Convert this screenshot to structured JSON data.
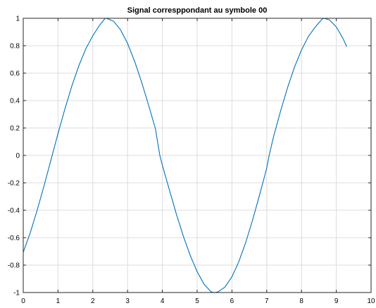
{
  "chart_data": {
    "type": "line",
    "title": "Signal corresppondant au symbole 00",
    "xlabel": "",
    "ylabel": "",
    "xlim": [
      0,
      10
    ],
    "ylim": [
      -1,
      1
    ],
    "xticks": [
      0,
      1,
      2,
      3,
      4,
      5,
      6,
      7,
      8,
      9,
      10
    ],
    "yticks": [
      1,
      0.8,
      0.6,
      0.4,
      0.2,
      0,
      -0.2,
      -0.4,
      -0.6,
      -0.8,
      -1
    ],
    "xtick_labels": [
      "0",
      "1",
      "2",
      "3",
      "4",
      "5",
      "6",
      "7",
      "8",
      "9",
      "10"
    ],
    "ytick_labels": [
      "1",
      "0.8",
      "0.6",
      "0.4",
      "0.2",
      "0",
      "-0.2",
      "-0.4",
      "-0.6",
      "-0.8",
      "-1"
    ],
    "grid": true,
    "line_color": "#0072BD",
    "series": [
      {
        "x": [
          0,
          0.2,
          0.4,
          0.6,
          0.8,
          1.0,
          1.2,
          1.4,
          1.6,
          1.8,
          2.0,
          2.2,
          2.356,
          2.4,
          2.6,
          2.8,
          3.0,
          3.2,
          3.4,
          3.6,
          3.8,
          3.927,
          4.0,
          4.2,
          4.4,
          4.6,
          4.8,
          5.0,
          5.2,
          5.4,
          5.498,
          5.6,
          5.8,
          6.0,
          6.2,
          6.4,
          6.6,
          6.8,
          7.0,
          7.069,
          7.2,
          7.4,
          7.6,
          7.8,
          8.0,
          8.2,
          8.4,
          8.6,
          8.639,
          8.8,
          9.0,
          9.2,
          9.3
        ],
        "y": [
          -0.707,
          -0.565,
          -0.4,
          -0.22,
          -0.03,
          0.16,
          0.341,
          0.508,
          0.655,
          0.778,
          0.873,
          0.951,
          1.0,
          0.999,
          0.978,
          0.915,
          0.816,
          0.688,
          0.537,
          0.37,
          0.195,
          0.0,
          -0.072,
          -0.25,
          -0.426,
          -0.587,
          -0.729,
          -0.848,
          -0.94,
          -0.995,
          -1.0,
          -0.995,
          -0.96,
          -0.885,
          -0.774,
          -0.632,
          -0.466,
          -0.283,
          -0.093,
          0.0,
          0.14,
          0.325,
          0.495,
          0.645,
          0.769,
          0.868,
          0.938,
          0.996,
          1.0,
          0.989,
          0.937,
          0.849,
          0.793
        ]
      }
    ]
  }
}
